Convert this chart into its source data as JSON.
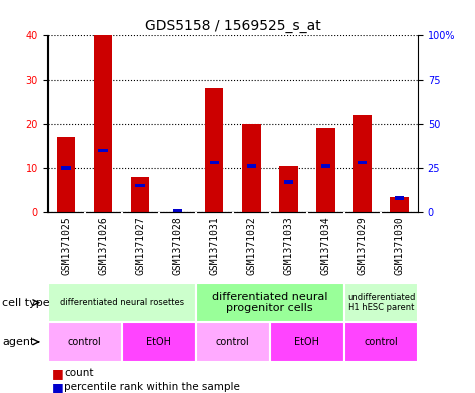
{
  "title": "GDS5158 / 1569525_s_at",
  "samples": [
    "GSM1371025",
    "GSM1371026",
    "GSM1371027",
    "GSM1371028",
    "GSM1371031",
    "GSM1371032",
    "GSM1371033",
    "GSM1371034",
    "GSM1371029",
    "GSM1371030"
  ],
  "counts": [
    17,
    40,
    8,
    0,
    28,
    20,
    10.5,
    19,
    22,
    3.5
  ],
  "percentiles": [
    25,
    35,
    15,
    1,
    28,
    26,
    17,
    26,
    28,
    8
  ],
  "ylim_left": [
    0,
    40
  ],
  "ylim_right": [
    0,
    100
  ],
  "yticks_left": [
    0,
    10,
    20,
    30,
    40
  ],
  "yticks_right": [
    0,
    25,
    50,
    75,
    100
  ],
  "yticklabels_right": [
    "0",
    "25",
    "50",
    "75",
    "100%"
  ],
  "bar_color_red": "#cc0000",
  "bar_color_blue": "#0000cc",
  "cell_type_groups": [
    {
      "label": "differentiated neural rosettes",
      "start": 0,
      "end": 3,
      "color": "#ccffcc",
      "fontsize": 6
    },
    {
      "label": "differentiated neural\nprogenitor cells",
      "start": 4,
      "end": 7,
      "color": "#99ff99",
      "fontsize": 8
    },
    {
      "label": "undifferentiated\nH1 hESC parent",
      "start": 8,
      "end": 9,
      "color": "#ccffcc",
      "fontsize": 6
    }
  ],
  "agent_groups": [
    {
      "label": "control",
      "start": 0,
      "end": 1,
      "color": "#ffaaff"
    },
    {
      "label": "EtOH",
      "start": 2,
      "end": 3,
      "color": "#ff44ff"
    },
    {
      "label": "control",
      "start": 4,
      "end": 5,
      "color": "#ffaaff"
    },
    {
      "label": "EtOH",
      "start": 6,
      "end": 7,
      "color": "#ff44ff"
    },
    {
      "label": "control",
      "start": 8,
      "end": 9,
      "color": "#ff44ff"
    }
  ],
  "bar_width": 0.5,
  "tick_label_fontsize": 7,
  "title_fontsize": 10,
  "legend_fontsize": 7.5,
  "row_label_fontsize": 8,
  "sample_bg_color": "#c8c8c8",
  "grid_color": "#000000",
  "spine_color": "#000000"
}
